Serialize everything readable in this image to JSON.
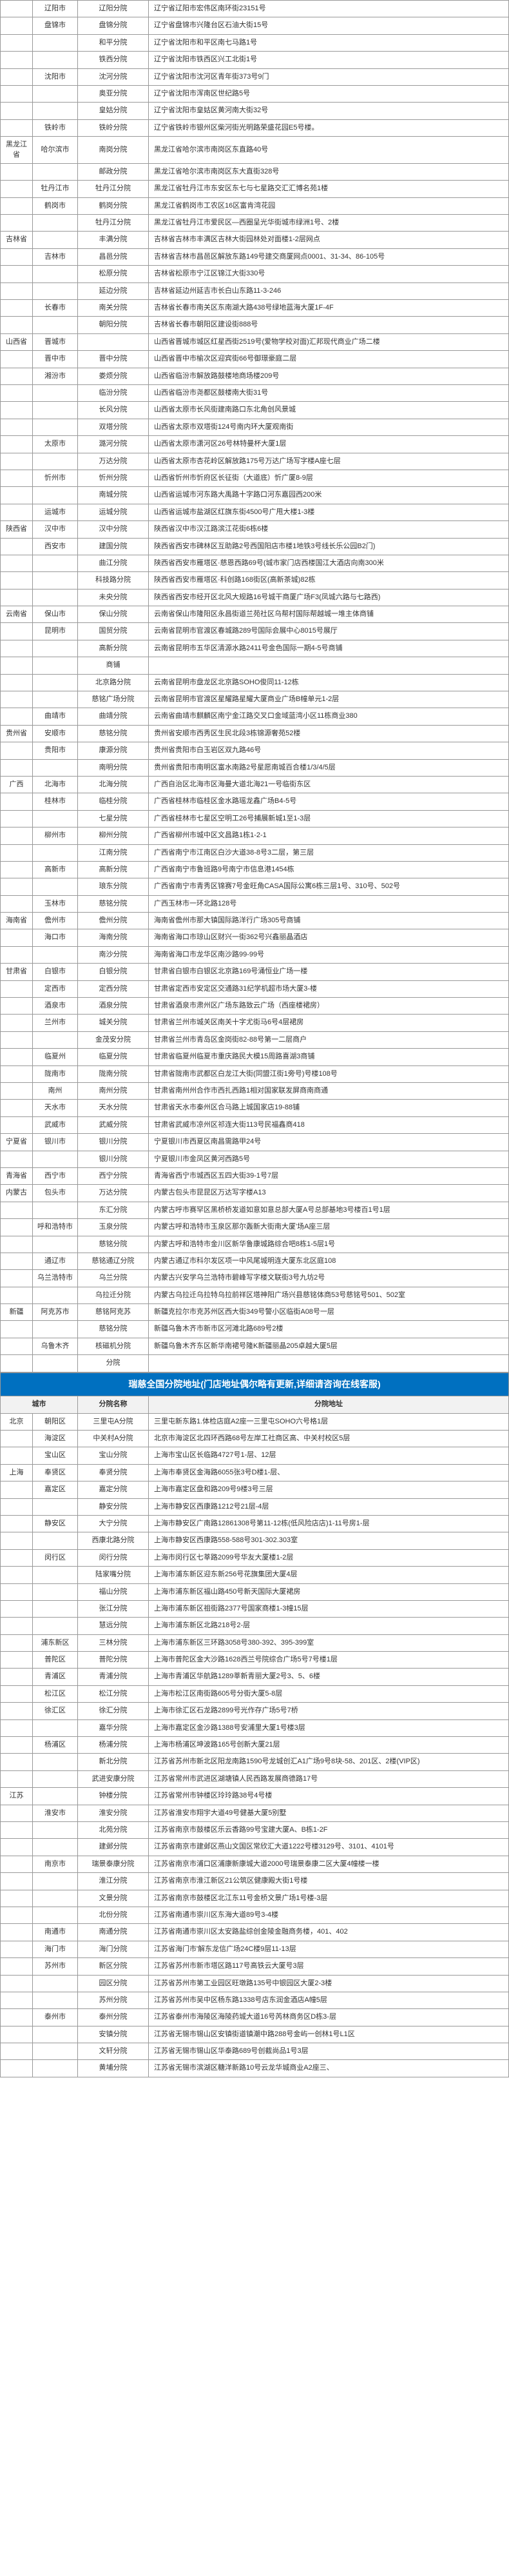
{
  "table1": {
    "rows": [
      {
        "prov": "",
        "city": "辽阳市",
        "branch": "辽阳分院",
        "addr": "辽宁省辽阳市宏伟区南环街23151号"
      },
      {
        "prov": "",
        "city": "盘锦市",
        "branch": "盘锦分院",
        "addr": "辽宁省盘锦市兴隆台区石油大街15号"
      },
      {
        "prov": "",
        "city": "",
        "branch": "和平分院",
        "addr": "辽宁省沈阳市和平区南七马路1号"
      },
      {
        "prov": "",
        "city": "",
        "branch": "铁西分院",
        "addr": "辽宁省沈阳市铁西区兴工北街1号"
      },
      {
        "prov": "",
        "city": "沈阳市",
        "branch": "沈河分院",
        "addr": "辽宁省沈阳市沈河区青年街373号9门"
      },
      {
        "prov": "",
        "city": "",
        "branch": "奥亚分院",
        "addr": "辽宁省沈阳市浑南区世纪路5号"
      },
      {
        "prov": "",
        "city": "",
        "branch": "皇姑分院",
        "addr": "辽宁省沈阳市皇姑区黄河南大街32号"
      },
      {
        "prov": "",
        "city": "铁岭市",
        "branch": "铁岭分院",
        "addr": "辽宁省铁岭市银州区柴河街光明路荣盛花园E5号楼。"
      },
      {
        "prov": "黑龙江省",
        "city": "哈尔滨市",
        "branch": "南岗分院",
        "addr": "黑龙江省哈尔滨市南岗区东直路40号"
      },
      {
        "prov": "",
        "city": "",
        "branch": "邮政分院",
        "addr": "黑龙江省哈尔滨市南岗区东大直街328号"
      },
      {
        "prov": "",
        "city": "牡丹江市",
        "branch": "牡丹江分院",
        "addr": "黑龙江省牡丹江市东安区东七与七星路交汇汇博名苑1楼"
      },
      {
        "prov": "",
        "city": "鹤岗市",
        "branch": "鹤岗分院",
        "addr": "黑龙江省鹤岗市工农区16区富肯湾花园"
      },
      {
        "prov": "",
        "city": "",
        "branch": "牡丹江分院",
        "addr": "黑龙江省牡丹江市爱民区—西圈呈光华街城市绿洲1号、2楼"
      },
      {
        "prov": "吉林省",
        "city": "",
        "branch": "丰满分院",
        "addr": "吉林省吉林市丰满区吉林大街园林处对面楼1-2层网点"
      },
      {
        "prov": "",
        "city": "吉林市",
        "branch": "昌邑分院",
        "addr": "吉林省吉林市昌邑区解放东路149号建交商厦网点0001、31-34、86-105号"
      },
      {
        "prov": "",
        "city": "",
        "branch": "松原分院",
        "addr": "吉林省松原市宁江区锦江大街330号"
      },
      {
        "prov": "",
        "city": "",
        "branch": "延边分院",
        "addr": "吉林省延边州延吉市长白山东路11-3-246"
      },
      {
        "prov": "",
        "city": "长春市",
        "branch": "南关分院",
        "addr": "吉林省长春市南关区东南湖大路438号绿地蓝海大厦1F-4F"
      },
      {
        "prov": "",
        "city": "",
        "branch": "朝阳分院",
        "addr": "吉林省长春市朝阳区建设街888号"
      },
      {
        "prov": "山西省",
        "city": "晋城市",
        "branch": "",
        "addr": "山西省晋城市城区红星西街2519号(爱物学校对面)汇邦现代商业广场二楼"
      },
      {
        "prov": "",
        "city": "晋中市",
        "branch": "晋中分院",
        "addr": "山西省晋中市榆次区迎宾街66号御璟豪庭二层"
      },
      {
        "prov": "",
        "city": "湘汾市",
        "branch": "娄烦分院",
        "addr": "山西省临汾市解放路鼓楼地商场楼209号"
      },
      {
        "prov": "",
        "city": "",
        "branch": "临汾分院",
        "addr": "山西省临汾市尧都区鼓楼南大街31号"
      },
      {
        "prov": "",
        "city": "",
        "branch": "长风分院",
        "addr": "山西省太原市长风街建南路口东北角创风景城"
      },
      {
        "prov": "",
        "city": "",
        "branch": "双塔分院",
        "addr": "山西省太原市双塔街124号南内环大厦观南街"
      },
      {
        "prov": "",
        "city": "太原市",
        "branch": "潞河分院",
        "addr": "山西省太原市潇河区26号林特曼杯大厦1层"
      },
      {
        "prov": "",
        "city": "",
        "branch": "万达分院",
        "addr": "山西省太原市杏花岭区解放路175号万达广场写字楼A座七层"
      },
      {
        "prov": "",
        "city": "忻州市",
        "branch": "忻州分院",
        "addr": "山西省忻州市忻府区长征街（大道底）忻广厦8-9层"
      },
      {
        "prov": "",
        "city": "",
        "branch": "南城分院",
        "addr": "山西省运城市河东路大禹路十字路口河东嘉园西200米"
      },
      {
        "prov": "",
        "city": "运城市",
        "branch": "运城分院",
        "addr": "山西省运城市盐湖区红旗东街4500号广甩大楼1-3楼"
      },
      {
        "prov": "陕西省",
        "city": "汉中市",
        "branch": "汉中分院",
        "addr": "陕西省汉中市汉江路滨江花街6栋6楼"
      },
      {
        "prov": "",
        "city": "西安市",
        "branch": "建国分院",
        "addr": "陕西省西安市碑林区互助路2号西国阳店市楼1地铁3号线长乐公园B2门)"
      },
      {
        "prov": "",
        "city": "",
        "branch": "曲江分院",
        "addr": "陕西省西安市雁塔区·慈恩西路69号(城市家门店西楼国江大酒店向南300米"
      },
      {
        "prov": "",
        "city": "",
        "branch": "科技路分院",
        "addr": "陕西省西安市雁塔区·科创路168街区(高新茶城)82栋"
      },
      {
        "prov": "",
        "city": "",
        "branch": "未央分院",
        "addr": "陕西省西安市经开区北风大规路16号城干商厦广场F3(凤城六路与七路西)"
      },
      {
        "prov": "云南省",
        "city": "保山市",
        "branch": "保山分院",
        "addr": "云南省保山市隆阳区永昌街道兰苑社区乌帮村国际帮越城一堆主体商铺"
      },
      {
        "prov": "",
        "city": "昆明市",
        "branch": "国贸分院",
        "addr": "云南省昆明市官渡区春城路289号国际会展中心8015号展厅"
      },
      {
        "prov": "",
        "city": "",
        "branch": "高新分院",
        "addr": "云南省昆明市五华区清源水路2411号金色国际一期4-5号商铺"
      },
      {
        "prov": "",
        "city": "",
        "branch": "商铺",
        "addr": ""
      },
      {
        "prov": "",
        "city": "",
        "branch": "北京路分院",
        "addr": "云南省昆明市盘龙区北京路SOHO俊同11-12栋"
      },
      {
        "prov": "",
        "city": "",
        "branch": "慈铭广场分院",
        "addr": "云南省昆明市官渡区星耀路星耀大厦商业广场B幢单元1-2层"
      },
      {
        "prov": "",
        "city": "曲靖市",
        "branch": "曲靖分院",
        "addr": "云南省曲靖市麒麟区南宁金江路交叉口金域蓝湾小区11栋商业380"
      },
      {
        "prov": "贵州省",
        "city": "安顺市",
        "branch": "慈铭分院",
        "addr": "贵州省安顺市西秀区生民北段3栋锦源奢苑52楼"
      },
      {
        "prov": "",
        "city": "贵阳市",
        "branch": "康源分院",
        "addr": "贵州省贵阳市白玉岩区双九路46号"
      },
      {
        "prov": "",
        "city": "",
        "branch": "南明分院",
        "addr": "贵州省贵阳市南明区富水南路2号星愿南城百合楼1/3/4/5层"
      },
      {
        "prov": "广西",
        "city": "北海市",
        "branch": "北海分院",
        "addr": "广西自治区北海市区海曼大道北海21一号临街东区"
      },
      {
        "prov": "",
        "city": "桂林市",
        "branch": "临桂分院",
        "addr": "广西省桂林市临桂区金水路瑶龙鑫广场B4-5号"
      },
      {
        "prov": "",
        "city": "",
        "branch": "七星分院",
        "addr": "广西省桂林市七星区空明工26号捕展新城1至1-3层"
      },
      {
        "prov": "",
        "city": "柳州市",
        "branch": "柳州分院",
        "addr": "广西省柳州市城中区文昌路1栋1-2-1"
      },
      {
        "prov": "",
        "city": "",
        "branch": "江南分院",
        "addr": "广西省南宁市江南区白沙大道38-8号3二层，第三层"
      },
      {
        "prov": "",
        "city": "高新市",
        "branch": "高新分院",
        "addr": "广西省南宁市鲁班路9号南宁市信息港1454栋"
      },
      {
        "prov": "",
        "city": "",
        "branch": "琅东分院",
        "addr": "广西省南宁市青秀区锦赛7号金旺角CASA国际公寓6栋三层1号、310号、502号"
      },
      {
        "prov": "",
        "city": "玉林市",
        "branch": "慈铭分院",
        "addr": "广西玉林市一环北路128号"
      },
      {
        "prov": "海南省",
        "city": "儋州市",
        "branch": "儋州分院",
        "addr": "海南省儋州市那大镇国际路洋行广场305号商铺"
      },
      {
        "prov": "",
        "city": "海口市",
        "branch": "海南分院",
        "addr": "海南省海口市琼山区财兴一街362号兴鑫丽晶酒店"
      },
      {
        "prov": "",
        "city": "",
        "branch": "南沙分院",
        "addr": "海南省海口市龙华区南沙路99-99号"
      },
      {
        "prov": "甘肃省",
        "city": "白银市",
        "branch": "白银分院",
        "addr": "甘肃省白银市白银区北京路169号涌恒业广场一楼"
      },
      {
        "prov": "",
        "city": "定西市",
        "branch": "定西分院",
        "addr": "甘肃省定西市安定区交通路31纪学机超市场大厦3-楼"
      },
      {
        "prov": "",
        "city": "酒泉市",
        "branch": "酒泉分院",
        "addr": "甘肃省酒泉市肃州区广场东路致云广场（西座楼裙房）"
      },
      {
        "prov": "",
        "city": "兰州市",
        "branch": "城关分院",
        "addr": "甘肃省兰州市城关区南关十字尤街马6号4层裙房"
      },
      {
        "prov": "",
        "city": "",
        "branch": "金茂安分院",
        "addr": "甘肃省兰州市青岛区金岗街82-88号第一二层商户"
      },
      {
        "prov": "",
        "city": "临夏州",
        "branch": "临夏分院",
        "addr": "甘肃省临夏州临夏市重庆路民大模15周路喜湖3商铺"
      },
      {
        "prov": "",
        "city": "陇南市",
        "branch": "陇南分院",
        "addr": "甘肃省陇南市武都区白龙江大街(同盟江街1旁号)号楼108号"
      },
      {
        "prov": "",
        "city": "南州",
        "branch": "南州分院",
        "addr": "甘肃省南州州合作市西扎西路1相对国家联发屏商南商通"
      },
      {
        "prov": "",
        "city": "天水市",
        "branch": "天水分院",
        "addr": "甘肃省天水市秦州区合马路上城国家店19-88铺"
      },
      {
        "prov": "",
        "city": "武威市",
        "branch": "武威分院",
        "addr": "甘肃省武威市凉州区祁连大街113号民福鑫商418"
      },
      {
        "prov": "宁夏省",
        "city": "银川市",
        "branch": "银川分院",
        "addr": "宁夏银川市西夏区南昌需路甲24号"
      },
      {
        "prov": "",
        "city": "",
        "branch": "银川分院",
        "addr": "宁夏银川市金凤区黄河西路5号"
      },
      {
        "prov": "青海省",
        "city": "西宁市",
        "branch": "西宁分院",
        "addr": "青海省西宁市城西区五四大街39-1号7层"
      },
      {
        "prov": "内蒙古",
        "city": "包头市",
        "branch": "万达分院",
        "addr": "内蒙古包头市昆昆区万达写字楼A13"
      },
      {
        "prov": "",
        "city": "",
        "branch": "东汇分院",
        "addr": "内蒙古呼市赛罕区黑桥桥发道如意如意总部大厦A号总部基地3号楼百1号1层"
      },
      {
        "prov": "",
        "city": "呼和浩特市",
        "branch": "玉泉分院",
        "addr": "内蒙古呼和浩特市玉泉区那尔轰新大街南大厦'场A座三层"
      },
      {
        "prov": "",
        "city": "",
        "branch": "慈铭分院",
        "addr": "内蒙古呼和浩特市金川区新华鲁康城路综合吧8栋1-5层1号"
      },
      {
        "prov": "",
        "city": "通辽市",
        "branch": "慈铭通辽分院",
        "addr": "内蒙古通辽市科尔发区项一中风尾城明连大厦东北区庭108"
      },
      {
        "prov": "",
        "city": "乌兰浩特市",
        "branch": "乌兰分院",
        "addr": "内蒙古兴安学乌兰浩特市碧峰写字楼文联街3号九坊2号"
      },
      {
        "prov": "",
        "city": "",
        "branch": "乌拉迁分院",
        "addr": "内蒙古乌拉迁乌拉特乌拉前祥区塔神阳广场兴县慈铭体商53号慈铭号501、502室"
      },
      {
        "prov": "新疆",
        "city": "阿克苏市",
        "branch": "慈铭阿克苏",
        "addr": "新疆克拉尔市克苏州区西大街349号警小区临街A08号一层"
      },
      {
        "prov": "",
        "city": "",
        "branch": "慈铭分院",
        "addr": "新疆乌鲁木齐市新市区河滩北路689号2楼"
      },
      {
        "prov": "",
        "city": "乌鲁木齐",
        "branch": "核磁机分院",
        "addr": "新疆乌鲁木齐东区新华南裙号隆K新疆丽晶205卓越大厦5层"
      },
      {
        "prov": "",
        "city": "",
        "branch": "分院",
        "addr": ""
      }
    ]
  },
  "section2": {
    "title": "瑞慈全国分院地址(门店地址偶尔略有更新,详细请咨询在线客服)",
    "headers": {
      "city": "城市",
      "branch": "分院名称",
      "addr": "分院地址"
    },
    "rows": [
      {
        "prov": "北京",
        "city": "朝阳区",
        "branch": "三里屯A分院",
        "addr": "三里屯新东路1.体检店庭A2座一三里屯SOHO六号格1层"
      },
      {
        "prov": "",
        "city": "海淀区",
        "branch": "中关村A分院",
        "addr": "北京市海淀区北四环西路68号左岸工社商区高、中关村校区5层"
      },
      {
        "prov": "",
        "city": "宝山区",
        "branch": "宝山分院",
        "addr": "上海市宝山区长临路4727号1-层、12层"
      },
      {
        "prov": "上海",
        "city": "奉贤区",
        "branch": "奉贤分院",
        "addr": "上海市奉贤区金海路6055张3号D楼1-层、"
      },
      {
        "prov": "",
        "city": "嘉定区",
        "branch": "嘉定分院",
        "addr": "上海市嘉定区盘和路209号9楼3号三层"
      },
      {
        "prov": "",
        "city": "",
        "branch": "静安分院",
        "addr": "上海市静安区西康路1212号21层-4层"
      },
      {
        "prov": "",
        "city": "静安区",
        "branch": "大宁分院",
        "addr": "上海市静安区广南路12861308号第11-12栋(低风险店店)1-11号房1-层"
      },
      {
        "prov": "",
        "city": "",
        "branch": "西康北路分院",
        "addr": "上海市静安区西康路558-588号301-302.303室"
      },
      {
        "prov": "",
        "city": "闵行区",
        "branch": "闵行分院",
        "addr": "上海市闵行区七莘路2099号华友大厦楼1-2层"
      },
      {
        "prov": "",
        "city": "",
        "branch": "陆家嘴分院",
        "addr": "上海市浦东新区迎东新256号花旗集团大厦4层"
      },
      {
        "prov": "",
        "city": "",
        "branch": "福山分院",
        "addr": "上海市浦东新区福山路450号新天国际大厦裙房"
      },
      {
        "prov": "",
        "city": "",
        "branch": "张江分院",
        "addr": "上海市浦东新区祖街路2377号国家商楼1-3幢15层"
      },
      {
        "prov": "",
        "city": "",
        "branch": "慧远分院",
        "addr": "上海市浦东新区北路218号2-层"
      },
      {
        "prov": "",
        "city": "浦东新区",
        "branch": "三林分院",
        "addr": "上海市浦东新区三环路3058号380-392、395-399室"
      },
      {
        "prov": "",
        "city": "普陀区",
        "branch": "普陀分院",
        "addr": "上海市普陀区金大沙路1628西兰号院综合广场5号7号楼1层"
      },
      {
        "prov": "",
        "city": "青浦区",
        "branch": "青浦分院",
        "addr": "上海市青浦区华航路1289莘新青丽大厦2号3、5、6楼"
      },
      {
        "prov": "",
        "city": "松江区",
        "branch": "松江分院",
        "addr": "上海市松江区南街路605号分街大厦5-8层"
      },
      {
        "prov": "",
        "city": "徐汇区",
        "branch": "徐汇分院",
        "addr": "上海市徐汇区石龙路2899号光作存广场5号7桥"
      },
      {
        "prov": "",
        "city": "",
        "branch": "嘉华分院",
        "addr": "上海市嘉定区金沙路1388号安浦里大厦1号楼3层"
      },
      {
        "prov": "",
        "city": "杨浦区",
        "branch": "杨浦分院",
        "addr": "上海市杨浦区坤波路165号创新大厦21层"
      },
      {
        "prov": "",
        "city": "",
        "branch": "新北分院",
        "addr": "江苏省苏州市新北区阳龙南路1590号龙城创汇A1广场9号8块-58、201区、2楼(VIP区)"
      },
      {
        "prov": "",
        "city": "",
        "branch": "武进安康分院",
        "addr": "江苏省常州市武进区湖塘镇人民西路发展商德路17号"
      },
      {
        "prov": "江苏",
        "city": "",
        "branch": "钟楼分院",
        "addr": "江苏省常州市钟楼区玲玲路38号4号楼"
      },
      {
        "prov": "",
        "city": "淮安市",
        "branch": "淮安分院",
        "addr": "江苏省淮安市翔宇大道49号健基大厦5别墅"
      },
      {
        "prov": "",
        "city": "",
        "branch": "北苑分院",
        "addr": "江苏省南京市鼓楼区乐云香路99号宝建大厦A、B栋1-2F"
      },
      {
        "prov": "",
        "city": "",
        "branch": "建邺分院",
        "addr": "江苏省南京市建邺区燕山文国区常欣汇大道1222号楼3129号、3101、4101号"
      },
      {
        "prov": "",
        "city": "南京市",
        "branch": "瑞景泰康分院",
        "addr": "江苏省南京市浦口区浦康新康城大道2000号瑞景泰康二区大厦4幢楼一楼"
      },
      {
        "prov": "",
        "city": "",
        "branch": "淮江分院",
        "addr": "江苏省南京市淮江新区21公筑区健康殿大街1号楼"
      },
      {
        "prov": "",
        "city": "",
        "branch": "文景分院",
        "addr": "江苏省南京市鼓楼区北江东11号金桥文景广场1号楼-3层"
      },
      {
        "prov": "",
        "city": "",
        "branch": "北份分院",
        "addr": "江苏省南通市崇川区东海大道89号3-4楼"
      },
      {
        "prov": "",
        "city": "南通市",
        "branch": "南通分院",
        "addr": "江苏省南通市崇川区太安路盐综创金陵金融商务楼，401、402"
      },
      {
        "prov": "",
        "city": "海门市",
        "branch": "海门分院",
        "addr": "江苏省海门市'解东龙信广场24C楼9层11-13层"
      },
      {
        "prov": "",
        "city": "苏州市",
        "branch": "新区分院",
        "addr": "江苏省苏州市新市塔区路117号高铁云大厦号3层"
      },
      {
        "prov": "",
        "city": "",
        "branch": "园区分院",
        "addr": "江苏省苏州市第工业园区旺墩路135号中银园区大厦2-3楼"
      },
      {
        "prov": "",
        "city": "",
        "branch": "苏州分院",
        "addr": "江苏省苏州市吴中区杨东路1338号店东润金酒店A幢5层"
      },
      {
        "prov": "",
        "city": "泰州市",
        "branch": "泰州分院",
        "addr": "江苏省泰州市海陵区海陵药城大道16号芮林商务区D栋3-层"
      },
      {
        "prov": "",
        "city": "",
        "branch": "安镇分院",
        "addr": "江苏省无锡市锡山区安镇街道镇潮中路288号金屿一创林1号L1区"
      },
      {
        "prov": "",
        "city": "",
        "branch": "文轩分院",
        "addr": "江苏省无锡市锡山区华泰路689号创截尚品1号3层"
      },
      {
        "prov": "",
        "city": "",
        "branch": "黄埔分院",
        "addr": "江苏省无锡市滨湖区糖洋新路10号云龙华城商业A2座三、"
      }
    ]
  }
}
